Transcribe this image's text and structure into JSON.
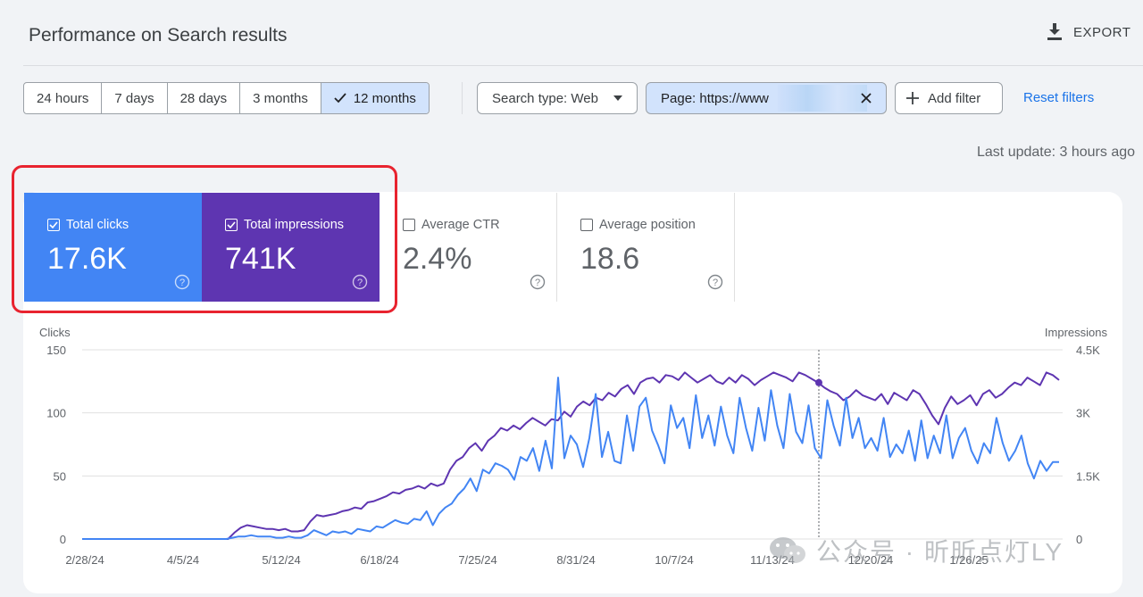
{
  "header": {
    "title": "Performance on Search results",
    "export_label": "EXPORT"
  },
  "date_range": {
    "options": [
      "24 hours",
      "7 days",
      "28 days",
      "3 months",
      "12 months"
    ],
    "selected": "12 months"
  },
  "filters": {
    "search_type_label": "Search type: Web",
    "page_filter_label": "Page: https://www",
    "add_filter_label": "Add filter",
    "reset_label": "Reset filters"
  },
  "last_update": "Last update: 3 hours ago",
  "metrics": {
    "clicks": {
      "label": "Total clicks",
      "value": "17.6K",
      "checked": true,
      "color": "#4285f4"
    },
    "impressions": {
      "label": "Total impressions",
      "value": "741K",
      "checked": true,
      "color": "#5e35b1"
    },
    "ctr": {
      "label": "Average CTR",
      "value": "2.4%",
      "checked": false
    },
    "position": {
      "label": "Average position",
      "value": "18.6",
      "checked": false
    }
  },
  "watermark": "公众号 · 昕昕点灯LY",
  "chart_data": {
    "type": "line",
    "x_tick_labels": [
      "2/28/24",
      "4/5/24",
      "5/12/24",
      "6/18/24",
      "7/25/24",
      "8/31/24",
      "10/7/24",
      "11/13/24",
      "12/20/24",
      "1/26/25"
    ],
    "left_axis": {
      "label": "Clicks",
      "ticks": [
        "150",
        "100",
        "50",
        "0"
      ],
      "range": [
        0,
        150
      ]
    },
    "right_axis": {
      "label": "Impressions",
      "ticks": [
        "4.5K",
        "3K",
        "1.5K",
        "0"
      ],
      "range": [
        0,
        4500
      ]
    },
    "grid": true,
    "series": [
      {
        "name": "Clicks",
        "color": "#4285f4",
        "axis": "left",
        "values": [
          0,
          0,
          0,
          0,
          0,
          0,
          0,
          0,
          0,
          0,
          0,
          0,
          0,
          0,
          0,
          0,
          0,
          0,
          0,
          0,
          0,
          0,
          0,
          0,
          1,
          2,
          2,
          3,
          2,
          2,
          2,
          1,
          1,
          2,
          1,
          1,
          3,
          7,
          5,
          3,
          6,
          5,
          6,
          4,
          8,
          7,
          6,
          10,
          9,
          12,
          15,
          13,
          12,
          16,
          15,
          22,
          11,
          20,
          25,
          28,
          35,
          40,
          48,
          38,
          55,
          52,
          60,
          58,
          55,
          47,
          65,
          62,
          72,
          54,
          78,
          56,
          128,
          64,
          82,
          75,
          57,
          80,
          115,
          65,
          85,
          62,
          60,
          98,
          70,
          105,
          112,
          86,
          74,
          60,
          106,
          88,
          96,
          72,
          114,
          80,
          98,
          74,
          105,
          82,
          68,
          112,
          88,
          70,
          104,
          78,
          118,
          90,
          72,
          115,
          85,
          76,
          106,
          72,
          64,
          110,
          90,
          74,
          112,
          80,
          96,
          72,
          80,
          70,
          96,
          65,
          75,
          68,
          86,
          62,
          94,
          64,
          82,
          68,
          98,
          64,
          80,
          88,
          70,
          60,
          76,
          68,
          96,
          76,
          62,
          70,
          82,
          60,
          48,
          62,
          54,
          61,
          61
        ],
        "note": "approximate read from rendered chart"
      },
      {
        "name": "Impressions",
        "color": "#5e35b1",
        "axis": "right",
        "values": [
          0,
          0,
          0,
          0,
          0,
          0,
          0,
          0,
          0,
          0,
          0,
          0,
          0,
          0,
          0,
          0,
          0,
          0,
          0,
          0,
          0,
          0,
          0,
          0,
          150,
          270,
          330,
          300,
          270,
          240,
          240,
          210,
          240,
          180,
          180,
          210,
          420,
          570,
          540,
          570,
          600,
          660,
          690,
          750,
          720,
          870,
          900,
          960,
          1020,
          1110,
          1080,
          1170,
          1200,
          1260,
          1200,
          1320,
          1260,
          1320,
          1650,
          1860,
          1950,
          2160,
          2280,
          2100,
          2340,
          2460,
          2640,
          2580,
          2700,
          2610,
          2760,
          2880,
          2790,
          2700,
          2850,
          2820,
          3030,
          2910,
          3150,
          3270,
          3180,
          3360,
          3300,
          3480,
          3390,
          3570,
          3660,
          3450,
          3720,
          3810,
          3840,
          3720,
          3900,
          3870,
          3780,
          3960,
          3840,
          3720,
          3810,
          3900,
          3750,
          3690,
          3840,
          3720,
          3900,
          3810,
          3660,
          3780,
          3870,
          3960,
          3900,
          3840,
          3750,
          3960,
          3900,
          3810,
          3720,
          3600,
          3510,
          3450,
          3300,
          3390,
          3540,
          3420,
          3360,
          3300,
          3450,
          3210,
          3480,
          3390,
          3300,
          3540,
          3450,
          3210,
          2940,
          2730,
          3120,
          3390,
          3210,
          3300,
          3420,
          3180,
          3450,
          3540,
          3360,
          3450,
          3600,
          3720,
          3660,
          3840,
          3750,
          3660,
          3960,
          3900,
          3780
        ]
      }
    ],
    "hover_marker_label": "11/13/24"
  }
}
